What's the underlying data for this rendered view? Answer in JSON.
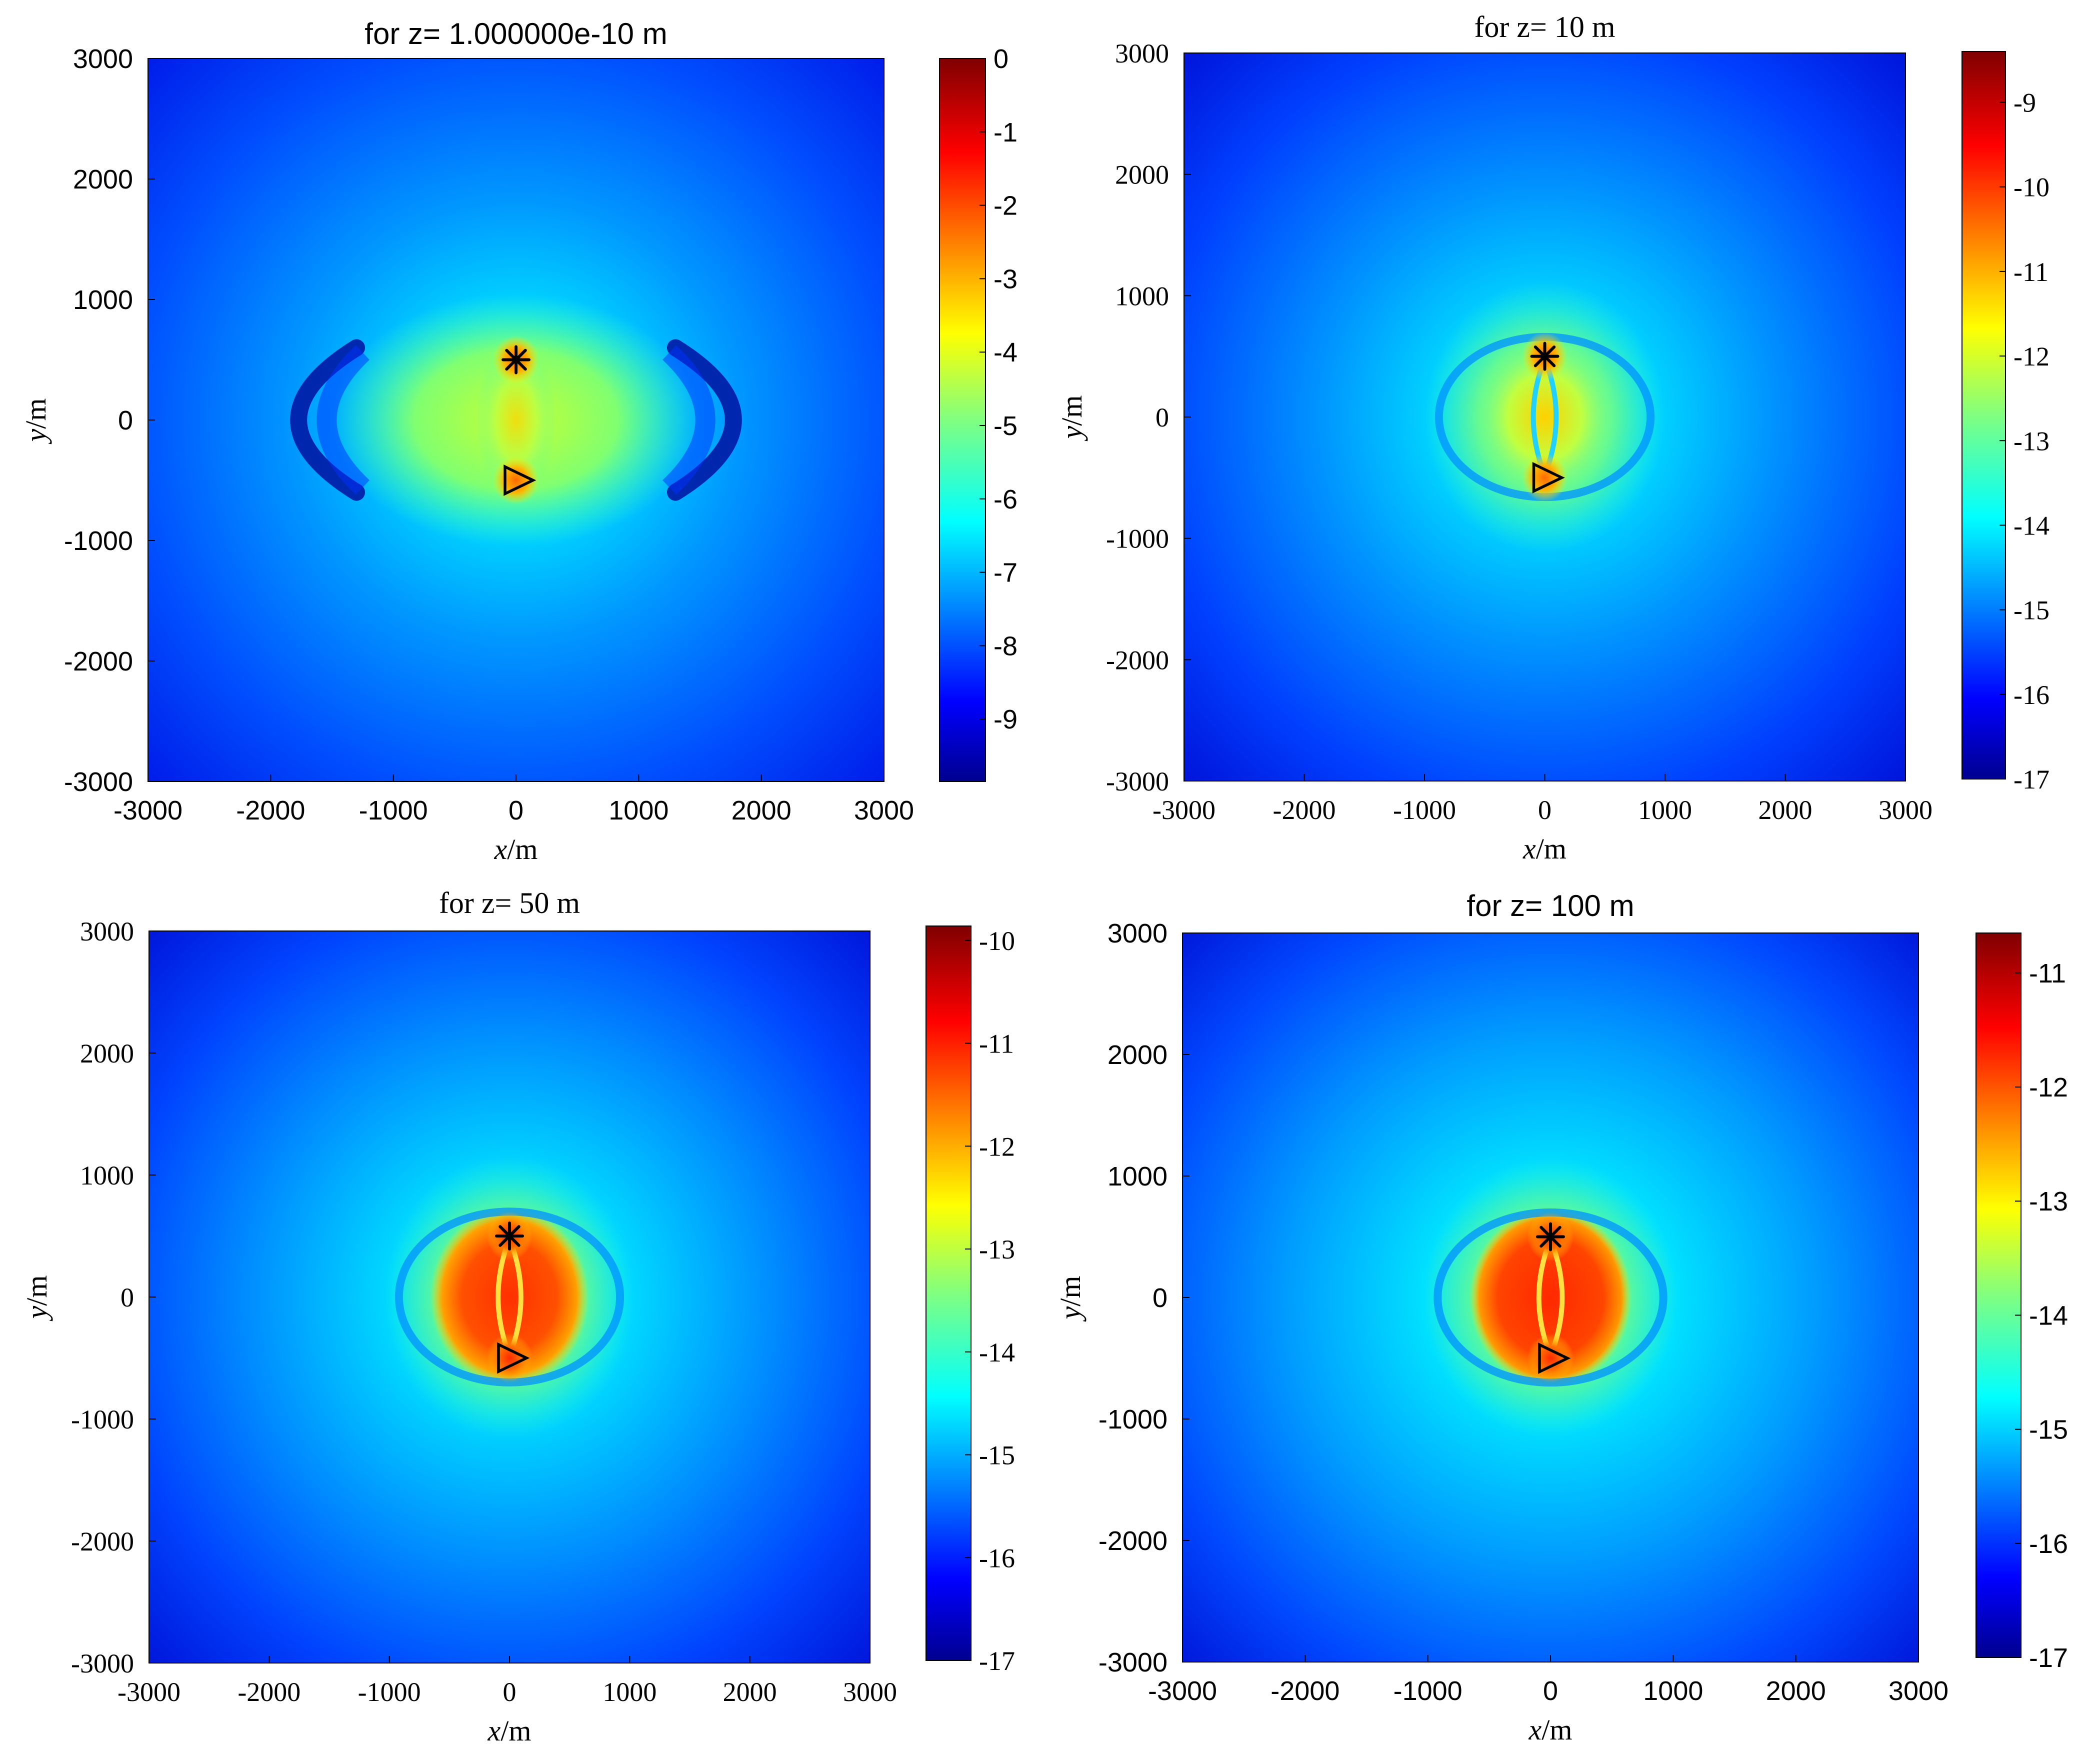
{
  "chart_data": [
    {
      "type": "heatmap",
      "title": "for z= 1.000000e-10 m",
      "xlabel": "x/m",
      "ylabel": "y/m",
      "xlim": [
        -3000,
        3000
      ],
      "ylim": [
        -3000,
        3000
      ],
      "x_ticks": [
        -3000,
        -2000,
        -1000,
        0,
        1000,
        2000,
        3000
      ],
      "y_ticks": [
        -3000,
        -2000,
        -1000,
        0,
        1000,
        2000,
        3000
      ],
      "colorbar": {
        "range": [
          -9.85,
          0
        ],
        "ticks": [
          0,
          -1,
          -2,
          -3,
          -4,
          -5,
          -6,
          -7,
          -8,
          -9
        ]
      },
      "colormap": "jet",
      "grid": false,
      "markers": [
        {
          "symbol": "asterisk",
          "x": 0,
          "y": 500
        },
        {
          "symbol": "triangle-right",
          "x": 0,
          "y": -500
        }
      ]
    },
    {
      "type": "heatmap",
      "title": "for z= 10 m",
      "xlabel": "x/m",
      "ylabel": "y/m",
      "xlim": [
        -3000,
        3000
      ],
      "ylim": [
        -3000,
        3000
      ],
      "x_ticks": [
        -3000,
        -2000,
        -1000,
        0,
        1000,
        2000,
        3000
      ],
      "y_ticks": [
        -3000,
        -2000,
        -1000,
        0,
        1000,
        2000,
        3000
      ],
      "colorbar": {
        "range": [
          -17,
          -8.4
        ],
        "ticks": [
          -9,
          -10,
          -11,
          -12,
          -13,
          -14,
          -15,
          -16,
          -17
        ]
      },
      "colormap": "jet",
      "grid": false,
      "markers": [
        {
          "symbol": "asterisk",
          "x": 0,
          "y": 500
        },
        {
          "symbol": "triangle-right",
          "x": 0,
          "y": -500
        }
      ]
    },
    {
      "type": "heatmap",
      "title": "for z= 50 m",
      "xlabel": "x/m",
      "ylabel": "y/m",
      "xlim": [
        -3000,
        3000
      ],
      "ylim": [
        -3000,
        3000
      ],
      "x_ticks": [
        -3000,
        -2000,
        -1000,
        0,
        1000,
        2000,
        3000
      ],
      "y_ticks": [
        -3000,
        -2000,
        -1000,
        0,
        1000,
        2000,
        3000
      ],
      "colorbar": {
        "range": [
          -17,
          -9.86
        ],
        "ticks": [
          -10,
          -11,
          -12,
          -13,
          -14,
          -15,
          -16,
          -17
        ]
      },
      "colormap": "jet",
      "grid": false,
      "markers": [
        {
          "symbol": "asterisk",
          "x": 0,
          "y": 500
        },
        {
          "symbol": "triangle-right",
          "x": 0,
          "y": -500
        }
      ]
    },
    {
      "type": "heatmap",
      "title": "for z= 100 m",
      "xlabel": "x/m",
      "ylabel": "y/m",
      "xlim": [
        -3000,
        3000
      ],
      "ylim": [
        -3000,
        3000
      ],
      "x_ticks": [
        -3000,
        -2000,
        -1000,
        0,
        1000,
        2000,
        3000
      ],
      "y_ticks": [
        -3000,
        -2000,
        -1000,
        0,
        1000,
        2000,
        3000
      ],
      "colorbar": {
        "range": [
          -17,
          -10.65
        ],
        "ticks": [
          -11,
          -12,
          -13,
          -14,
          -15,
          -16,
          -17
        ]
      },
      "colormap": "jet",
      "grid": false,
      "markers": [
        {
          "symbol": "asterisk",
          "x": 0,
          "y": 500
        },
        {
          "symbol": "triangle-right",
          "x": 0,
          "y": -500
        }
      ]
    }
  ]
}
